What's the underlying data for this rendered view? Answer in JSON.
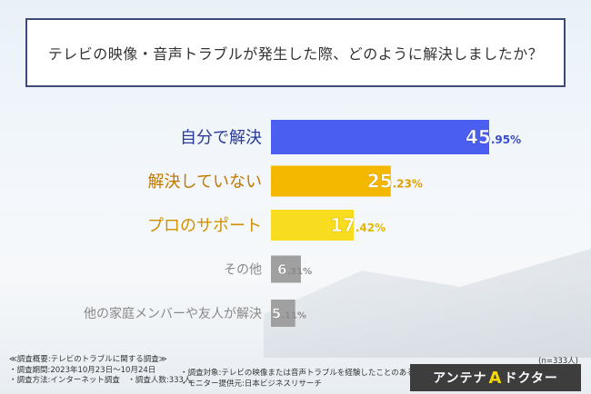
{
  "title": "テレビの映像・音声トラブルが発生した際、どのように解決しましたか？",
  "chart_data": {
    "type": "bar",
    "orientation": "horizontal",
    "categories": [
      "自分で解決",
      "解決していない",
      "プロのサポート",
      "その他",
      "他の家庭メンバーや友人が解決"
    ],
    "values": [
      45.95,
      25.23,
      17.42,
      6.31,
      5.11
    ],
    "labels": [
      {
        "int": "45",
        "dec": ".95%"
      },
      {
        "int": "25",
        "dec": ".23%"
      },
      {
        "int": "17",
        "dec": ".42%"
      },
      {
        "int": "6",
        "dec": ".31%"
      },
      {
        "int": "5",
        "dec": ".11%"
      }
    ],
    "colors": [
      "#4a5ff0",
      "#f5b800",
      "#f8dc20",
      "#a0a0a0",
      "#a0a0a0"
    ],
    "label_colors": [
      "#3a4cc8",
      "#e0a000",
      "#e0b800",
      "#8a8a8a",
      "#8a8a8a"
    ],
    "category_colors": [
      "#2a3a9a",
      "#c07800",
      "#d09000",
      "#888888",
      "#888888"
    ],
    "xlim": [
      0,
      100
    ],
    "grid": false
  },
  "footer": {
    "lines_left": [
      "≪調査概要:テレビのトラブルに関する調査≫",
      "・調査期間:2023年10月23日〜10月24日",
      "・調査方法:インターネット調査　・調査人数:333人"
    ],
    "lines_mid": [
      "・調査対象:テレビの映像または音声トラブルを経験したことのある方",
      "・モニター提供元:日本ビジネスリサーチ"
    ],
    "n_note": "(n=333人)"
  },
  "logo": {
    "text_left": "アンテナ",
    "mark": "A",
    "text_right": "ドクター"
  }
}
